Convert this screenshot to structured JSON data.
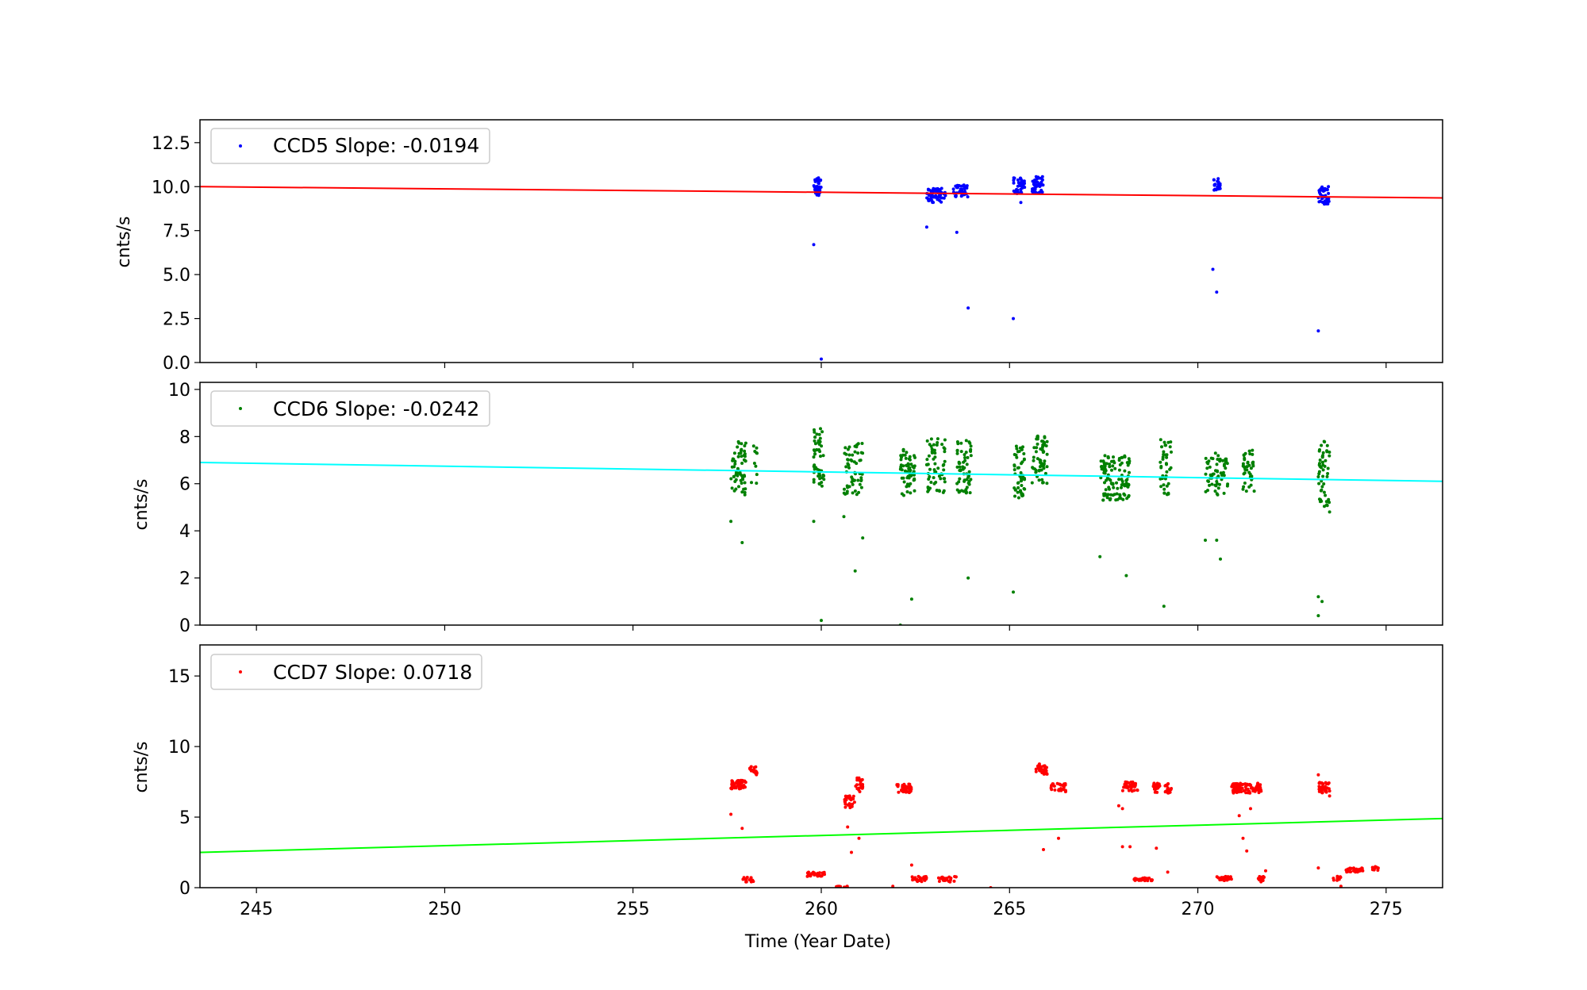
{
  "chart_data": [
    {
      "type": "scatter",
      "ylabel": "cnts/s",
      "ylim": [
        0,
        13.8
      ],
      "yticks": [
        "0.0",
        "2.5",
        "5.0",
        "7.5",
        "10.0",
        "12.5"
      ],
      "ytick_values": [
        0,
        2.5,
        5,
        7.5,
        10,
        12.5
      ],
      "xlim": [
        243.5,
        276.5
      ],
      "legend": {
        "label": "CCD5 Slope: -0.0194",
        "placement": "top-left"
      },
      "colors": {
        "points": "#0000ff",
        "fit": "#ff0000"
      },
      "fit_line": {
        "x": [
          243.5,
          276.5
        ],
        "y": [
          10.0,
          9.36
        ]
      },
      "series": [
        {
          "clusters": [
            {
              "x": [
                259.8,
                260.0
              ],
              "y": [
                9.5,
                10.5
              ],
              "n": 40
            },
            {
              "x": [
                262.8,
                263.3
              ],
              "y": [
                9.1,
                9.9
              ],
              "n": 60
            },
            {
              "x": [
                263.5,
                263.9
              ],
              "y": [
                9.4,
                10.1
              ],
              "n": 40
            },
            {
              "x": [
                265.1,
                265.4
              ],
              "y": [
                9.6,
                10.5
              ],
              "n": 40
            },
            {
              "x": [
                265.6,
                265.9
              ],
              "y": [
                9.6,
                10.6
              ],
              "n": 40
            },
            {
              "x": [
                270.4,
                270.6
              ],
              "y": [
                9.8,
                10.5
              ],
              "n": 20
            },
            {
              "x": [
                273.2,
                273.5
              ],
              "y": [
                9.0,
                10.0
              ],
              "n": 40
            }
          ],
          "outliers": [
            [
              259.8,
              6.7
            ],
            [
              260.0,
              0.2
            ],
            [
              262.8,
              7.7
            ],
            [
              263.6,
              7.4
            ],
            [
              263.9,
              3.1
            ],
            [
              265.1,
              2.5
            ],
            [
              265.3,
              9.1
            ],
            [
              270.4,
              5.3
            ],
            [
              270.5,
              4.0
            ],
            [
              273.2,
              1.8
            ]
          ]
        }
      ]
    },
    {
      "type": "scatter",
      "ylabel": "cnts/s",
      "ylim": [
        0,
        10.3
      ],
      "yticks": [
        "0",
        "2",
        "4",
        "6",
        "8",
        "10"
      ],
      "ytick_values": [
        0,
        2,
        4,
        6,
        8,
        10
      ],
      "xlim": [
        243.5,
        276.5
      ],
      "legend": {
        "label": "CCD6 Slope: -0.0242",
        "placement": "top-left"
      },
      "colors": {
        "points": "#008000",
        "fit": "#00ffff"
      },
      "fit_line": {
        "x": [
          243.5,
          276.5
        ],
        "y": [
          6.9,
          6.1
        ]
      },
      "series": [
        {
          "clusters": [
            {
              "x": [
                257.6,
                258.0
              ],
              "y": [
                5.5,
                7.8
              ],
              "n": 60
            },
            {
              "x": [
                258.1,
                258.3
              ],
              "y": [
                6.0,
                7.8
              ],
              "n": 10
            },
            {
              "x": [
                259.8,
                260.1
              ],
              "y": [
                5.9,
                8.5
              ],
              "n": 50
            },
            {
              "x": [
                260.6,
                261.1
              ],
              "y": [
                5.5,
                7.8
              ],
              "n": 60
            },
            {
              "x": [
                262.1,
                262.5
              ],
              "y": [
                5.5,
                7.5
              ],
              "n": 60
            },
            {
              "x": [
                262.8,
                263.3
              ],
              "y": [
                5.5,
                8.0
              ],
              "n": 60
            },
            {
              "x": [
                263.6,
                264.0
              ],
              "y": [
                5.6,
                7.9
              ],
              "n": 60
            },
            {
              "x": [
                265.1,
                265.4
              ],
              "y": [
                5.4,
                7.6
              ],
              "n": 50
            },
            {
              "x": [
                265.6,
                266.0
              ],
              "y": [
                6.0,
                8.2
              ],
              "n": 60
            },
            {
              "x": [
                267.4,
                268.2
              ],
              "y": [
                5.3,
                7.2
              ],
              "n": 110
            },
            {
              "x": [
                269.0,
                269.3
              ],
              "y": [
                5.5,
                7.9
              ],
              "n": 40
            },
            {
              "x": [
                270.2,
                270.8
              ],
              "y": [
                5.5,
                7.3
              ],
              "n": 60
            },
            {
              "x": [
                271.2,
                271.5
              ],
              "y": [
                5.5,
                7.5
              ],
              "n": 40
            },
            {
              "x": [
                273.2,
                273.5
              ],
              "y": [
                5.0,
                7.8
              ],
              "n": 50
            }
          ],
          "outliers": [
            [
              257.6,
              4.4
            ],
            [
              257.9,
              3.5
            ],
            [
              259.8,
              4.4
            ],
            [
              260.0,
              0.2
            ],
            [
              260.6,
              4.6
            ],
            [
              260.9,
              2.3
            ],
            [
              261.1,
              3.7
            ],
            [
              262.1,
              0.0
            ],
            [
              262.4,
              1.1
            ],
            [
              263.9,
              2.0
            ],
            [
              265.1,
              1.4
            ],
            [
              267.4,
              2.9
            ],
            [
              268.1,
              2.1
            ],
            [
              269.1,
              0.8
            ],
            [
              270.2,
              3.6
            ],
            [
              270.5,
              3.6
            ],
            [
              270.6,
              2.8
            ],
            [
              273.2,
              1.2
            ],
            [
              273.2,
              0.4
            ],
            [
              273.3,
              1.0
            ],
            [
              273.5,
              4.8
            ]
          ]
        }
      ]
    },
    {
      "type": "scatter",
      "ylabel": "cnts/s",
      "xlabel": "Time (Year Date)",
      "ylim": [
        0,
        17.2
      ],
      "yticks": [
        "0",
        "5",
        "10",
        "15"
      ],
      "ytick_values": [
        0,
        5,
        10,
        15
      ],
      "xlim": [
        243.5,
        276.5
      ],
      "xticks": [
        "245",
        "250",
        "255",
        "260",
        "265",
        "270",
        "275"
      ],
      "xtick_values": [
        245,
        250,
        255,
        260,
        265,
        270,
        275
      ],
      "legend": {
        "label": "CCD7 Slope: 0.0718",
        "placement": "top-left"
      },
      "colors": {
        "points": "#ff0000",
        "fit": "#00ff00"
      },
      "fit_line": {
        "x": [
          243.5,
          276.5
        ],
        "y": [
          2.5,
          4.9
        ]
      },
      "series": [
        {
          "clusters": [
            {
              "x": [
                257.6,
                258.0
              ],
              "y": [
                7.0,
                7.6
              ],
              "n": 50
            },
            {
              "x": [
                258.1,
                258.3
              ],
              "y": [
                7.9,
                8.6
              ],
              "n": 15
            },
            {
              "x": [
                257.9,
                258.2
              ],
              "y": [
                0.4,
                0.8
              ],
              "n": 15
            },
            {
              "x": [
                259.6,
                260.1
              ],
              "y": [
                0.8,
                1.1
              ],
              "n": 30
            },
            {
              "x": [
                260.4,
                260.7
              ],
              "y": [
                0.0,
                0.1
              ],
              "n": 15
            },
            {
              "x": [
                260.6,
                260.9
              ],
              "y": [
                5.6,
                6.5
              ],
              "n": 25
            },
            {
              "x": [
                260.9,
                261.1
              ],
              "y": [
                6.8,
                7.8
              ],
              "n": 25
            },
            {
              "x": [
                262.0,
                262.4
              ],
              "y": [
                6.7,
                7.4
              ],
              "n": 40
            },
            {
              "x": [
                262.4,
                262.8
              ],
              "y": [
                0.4,
                0.8
              ],
              "n": 25
            },
            {
              "x": [
                263.1,
                263.6
              ],
              "y": [
                0.4,
                0.8
              ],
              "n": 25
            },
            {
              "x": [
                265.7,
                266.0
              ],
              "y": [
                8.0,
                8.8
              ],
              "n": 30
            },
            {
              "x": [
                266.1,
                266.5
              ],
              "y": [
                6.8,
                7.4
              ],
              "n": 30
            },
            {
              "x": [
                268.0,
                268.4
              ],
              "y": [
                6.8,
                7.5
              ],
              "n": 40
            },
            {
              "x": [
                268.3,
                268.8
              ],
              "y": [
                0.5,
                0.7
              ],
              "n": 30
            },
            {
              "x": [
                268.8,
                269.0
              ],
              "y": [
                6.7,
                7.4
              ],
              "n": 20
            },
            {
              "x": [
                269.1,
                269.3
              ],
              "y": [
                6.7,
                7.4
              ],
              "n": 20
            },
            {
              "x": [
                270.5,
                270.9
              ],
              "y": [
                0.5,
                0.8
              ],
              "n": 25
            },
            {
              "x": [
                270.9,
                271.7
              ],
              "y": [
                6.7,
                7.4
              ],
              "n": 90
            },
            {
              "x": [
                271.6,
                271.8
              ],
              "y": [
                0.4,
                0.8
              ],
              "n": 15
            },
            {
              "x": [
                273.2,
                273.5
              ],
              "y": [
                6.7,
                7.5
              ],
              "n": 30
            },
            {
              "x": [
                273.6,
                273.8
              ],
              "y": [
                0.4,
                0.8
              ],
              "n": 10
            },
            {
              "x": [
                273.9,
                274.4
              ],
              "y": [
                1.1,
                1.4
              ],
              "n": 30
            },
            {
              "x": [
                274.6,
                274.8
              ],
              "y": [
                1.2,
                1.5
              ],
              "n": 10
            }
          ],
          "outliers": [
            [
              257.6,
              5.2
            ],
            [
              257.9,
              4.2
            ],
            [
              260.7,
              4.3
            ],
            [
              260.8,
              2.5
            ],
            [
              261.0,
              3.5
            ],
            [
              262.4,
              1.6
            ],
            [
              261.9,
              0.1
            ],
            [
              264.5,
              0.0
            ],
            [
              265.9,
              2.7
            ],
            [
              266.3,
              3.5
            ],
            [
              267.9,
              5.8
            ],
            [
              268.0,
              5.6
            ],
            [
              268.0,
              2.9
            ],
            [
              268.2,
              2.9
            ],
            [
              268.9,
              2.8
            ],
            [
              269.2,
              1.1
            ],
            [
              271.1,
              5.1
            ],
            [
              271.2,
              3.5
            ],
            [
              271.3,
              2.6
            ],
            [
              271.4,
              5.6
            ],
            [
              271.8,
              1.2
            ],
            [
              273.2,
              8.0
            ],
            [
              273.2,
              1.4
            ],
            [
              273.5,
              6.5
            ],
            [
              273.8,
              0.1
            ]
          ]
        }
      ]
    }
  ]
}
